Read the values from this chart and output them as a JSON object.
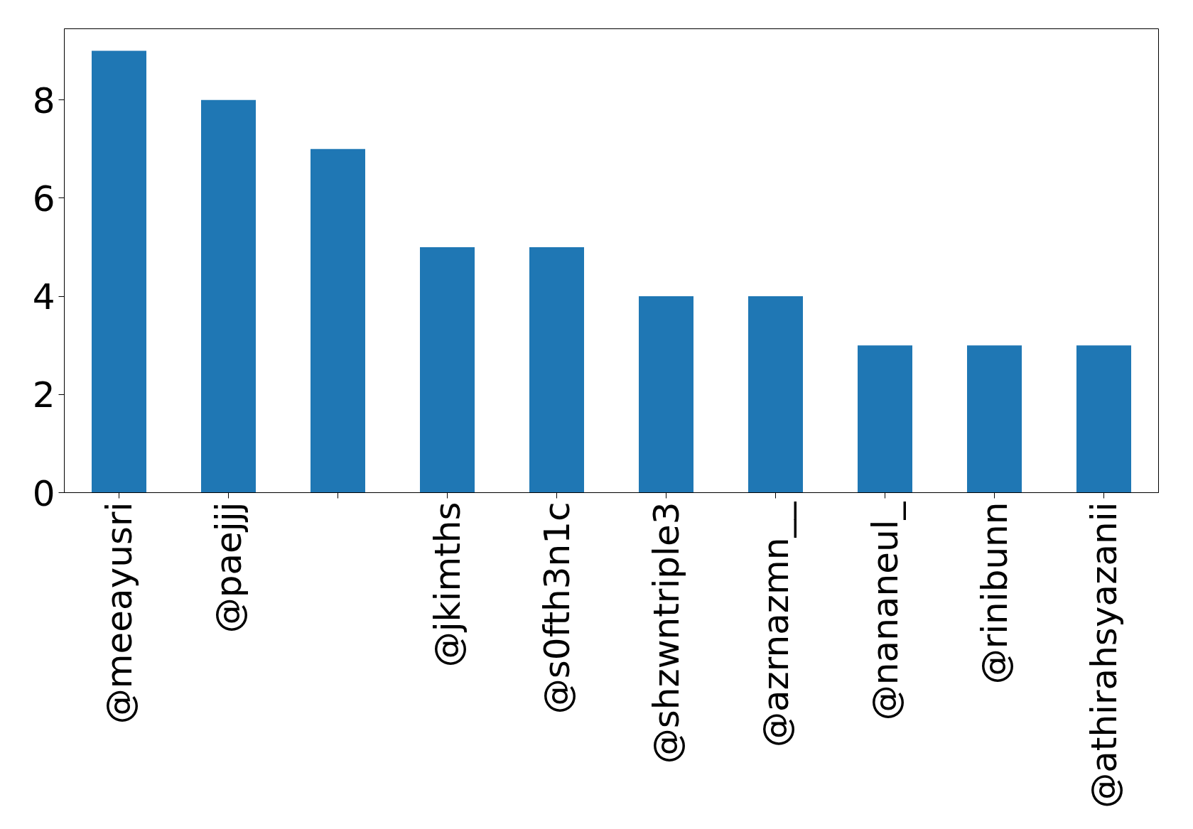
{
  "chart_data": {
    "type": "bar",
    "categories": [
      "@meeayusri",
      "@paejjj",
      null,
      "@jkimths",
      "@s0fth3n1c",
      "@shzwntriple3",
      "@azrnazmn__",
      "@nananeul_",
      "@rinibunn",
      "@athirahsyazanii"
    ],
    "values": [
      9,
      8,
      7,
      5,
      5,
      4,
      4,
      3,
      3,
      3
    ],
    "color": "#1f77b4",
    "ylim": [
      0,
      9.45
    ],
    "yticks": [
      0,
      2,
      4,
      6,
      8
    ],
    "grid": false
  }
}
